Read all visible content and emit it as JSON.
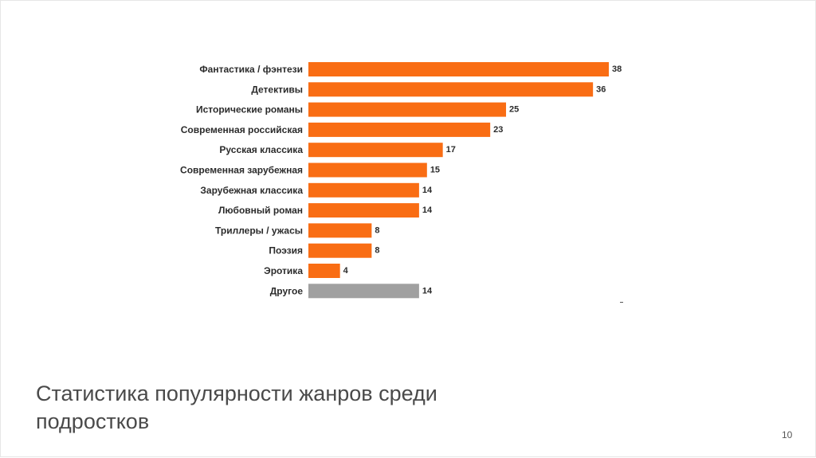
{
  "slide": {
    "title": "Статистика популярности жанров среди подростков",
    "page_number": "10"
  },
  "chart_data": {
    "type": "bar",
    "orientation": "horizontal",
    "title": "",
    "xlabel": "",
    "ylabel": "",
    "grid": false,
    "legend": "none",
    "categories": [
      "Фантастика / фэнтези",
      "Детективы",
      "Исторические романы",
      "Современная российская",
      "Русская классика",
      "Современная зарубежная",
      "Зарубежная классика",
      "Любовный роман",
      "Триллеры / ужасы",
      "Поэзия",
      "Эротика",
      "Другое"
    ],
    "values": [
      38,
      36,
      25,
      23,
      17,
      15,
      14,
      14,
      8,
      8,
      4,
      14
    ],
    "value_labels": [
      "38",
      "36",
      "25",
      "23",
      "17",
      "15",
      "14",
      "14",
      "8",
      "8",
      "4",
      "14"
    ],
    "xlim": [
      0,
      38
    ],
    "colors": {
      "bar": "#f96d14",
      "other_bar": "#a0a0a0"
    },
    "highlight_index": 11
  }
}
